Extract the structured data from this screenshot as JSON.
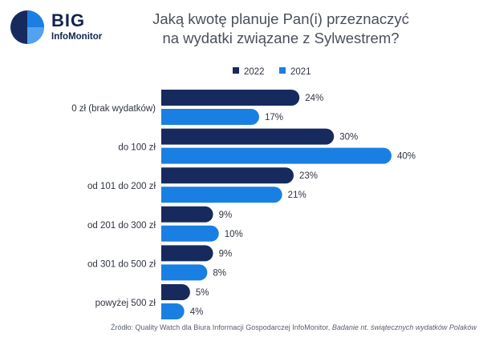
{
  "logo": {
    "big": "BIG",
    "sub": "InfoMonitor"
  },
  "title_line1": "Jaką kwotę planuje Pan(i) przeznaczyć",
  "title_line2": "na wydatki związane z Sylwestrem?",
  "source_prefix": "Źródło: Quality Watch dla Biura Informacji Gospodarczej InfoMonitor,",
  "source_italic": "Badanie nt. świątecznych wydatków Polaków",
  "colors": {
    "series_2022": "#172a5e",
    "series_2021": "#1a7fe3"
  },
  "chart_data": {
    "type": "bar",
    "orientation": "horizontal",
    "title": "Jaką kwotę planuje Pan(i) przeznaczyć na wydatki związane z Sylwestrem?",
    "categories": [
      "0 zł (brak wydatków)",
      "do 100 zł",
      "od 101 do 200 zł",
      "od 201 do 300 zł",
      "od 301 do 500 zł",
      "powyżej 500 zł"
    ],
    "series": [
      {
        "name": "2022",
        "values": [
          24,
          30,
          23,
          9,
          9,
          5
        ],
        "labels": [
          "24%",
          "30%",
          "23%",
          "9%",
          "9%",
          "5%"
        ]
      },
      {
        "name": "2021",
        "values": [
          17,
          40,
          21,
          10,
          8,
          4
        ],
        "labels": [
          "17%",
          "40%",
          "21%",
          "10%",
          "8%",
          "4%"
        ]
      }
    ],
    "value_unit": "%",
    "legend": "top",
    "grid": false,
    "xlim": [
      0,
      40
    ]
  }
}
